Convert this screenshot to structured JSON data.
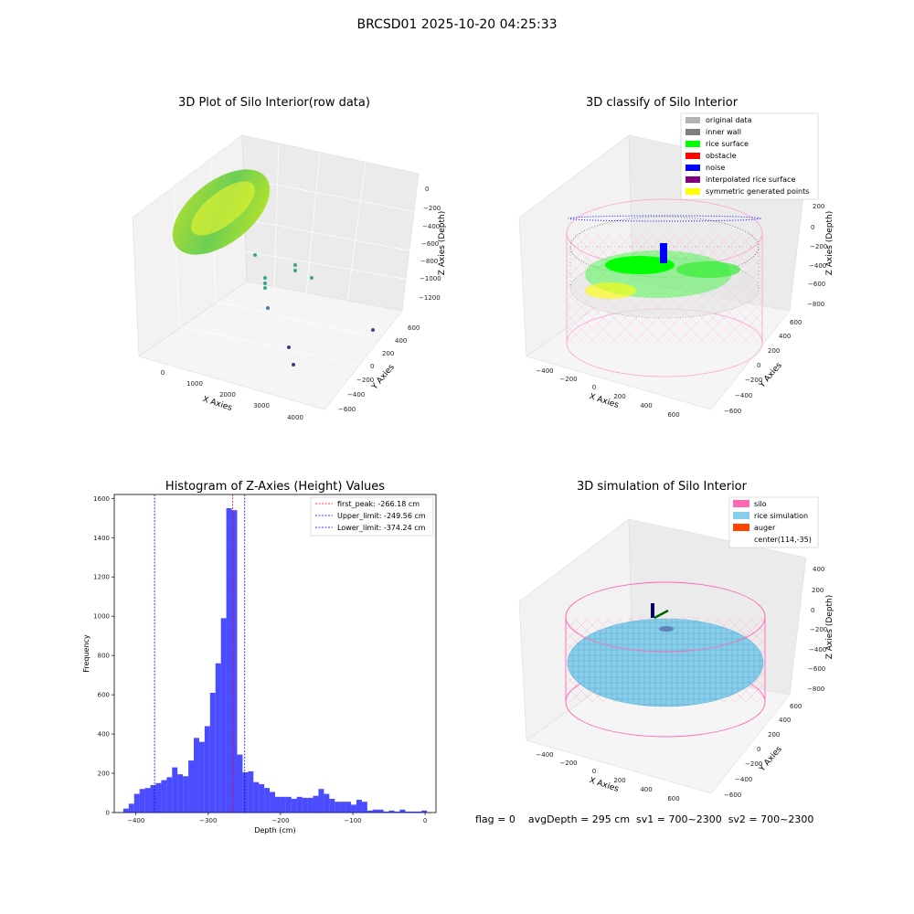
{
  "figure": {
    "suptitle": "BRCSD01 2025-10-20 04:25:33",
    "footer": "flag = 0    avgDepth = 295 cm  sv1 = 700~2300  sv2 = 700~2300"
  },
  "panel1": {
    "title": "3D Plot of Silo Interior(row data)",
    "xlabel": "X Axies",
    "ylabel": "Y Axies",
    "zlabel": "Z Axies (Depth)",
    "xticks": [
      "0",
      "1000",
      "2000",
      "3000",
      "4000"
    ],
    "yticks": [
      "−600",
      "−400",
      "−200",
      "0",
      "200",
      "400",
      "600"
    ],
    "zticks": [
      "−1200",
      "−1000",
      "−800",
      "−600",
      "−400",
      "−200",
      "0"
    ]
  },
  "panel2": {
    "title": "3D classify of Silo Interior",
    "xlabel": "X Axies",
    "ylabel": "Y Axies",
    "zlabel": "Z Axies (Depth)",
    "xticks": [
      "−400",
      "−200",
      "0",
      "200",
      "400",
      "600"
    ],
    "yticks": [
      "−600",
      "−400",
      "−200",
      "0",
      "200",
      "400",
      "600"
    ],
    "zticks": [
      "−800",
      "−600",
      "−400",
      "−200",
      "0",
      "200"
    ],
    "legend": [
      {
        "label": "original data",
        "color": "#b3b3b3"
      },
      {
        "label": "inner wall",
        "color": "#808080"
      },
      {
        "label": "rice surface",
        "color": "#00ff00"
      },
      {
        "label": "obstacle",
        "color": "#ff0000"
      },
      {
        "label": "noise",
        "color": "#0000ff"
      },
      {
        "label": "interpolated rice surface",
        "color": "#800080"
      },
      {
        "label": "symmetric generated points",
        "color": "#ffff00"
      }
    ]
  },
  "panel4": {
    "title": "3D simulation of Silo Interior",
    "xlabel": "X Axies",
    "ylabel": "Y Axies",
    "zlabel": "Z Axies (Depth)",
    "xticks": [
      "−400",
      "−200",
      "0",
      "200",
      "400",
      "600"
    ],
    "yticks": [
      "−600",
      "−400",
      "−200",
      "0",
      "200",
      "400",
      "600"
    ],
    "zticks": [
      "−800",
      "−600",
      "−400",
      "−200",
      "0",
      "200",
      "400"
    ],
    "legend": [
      {
        "label": "silo",
        "color": "#ff69b4"
      },
      {
        "label": "rice simulation",
        "color": "#87ceeb"
      },
      {
        "label": "auger",
        "color": "#ff4500"
      },
      {
        "label": "center(114,-35)",
        "color": "none"
      }
    ]
  },
  "chart_data": {
    "type": "bar",
    "title": "Histogram of Z-Axies (Height) Values",
    "xlabel": "Depth (cm)",
    "ylabel": "Frequency",
    "xlim": [
      -430,
      15
    ],
    "ylim": [
      0,
      1620
    ],
    "bar_color": "#0000ff",
    "bar_width": 7.5,
    "xticks": [
      -400,
      -300,
      -200,
      -100,
      0
    ],
    "xtick_labels": [
      "−400",
      "−300",
      "−200",
      "−100",
      "0"
    ],
    "yticks": [
      0,
      200,
      400,
      600,
      800,
      1000,
      1200,
      1400,
      1600
    ],
    "bins_left": [
      -417.5,
      -410,
      -402.5,
      -395,
      -387.5,
      -380,
      -372.5,
      -365,
      -357.5,
      -350,
      -342.5,
      -335,
      -327.5,
      -320,
      -312.5,
      -305,
      -297.5,
      -290,
      -282.5,
      -275,
      -267.5,
      -260,
      -252.5,
      -245,
      -237.5,
      -230,
      -222.5,
      -215,
      -207.5,
      -200,
      -192.5,
      -185,
      -177.5,
      -170,
      -162.5,
      -155,
      -147.5,
      -140,
      -132.5,
      -125,
      -117.5,
      -110,
      -102.5,
      -95,
      -87.5,
      -80,
      -72.5,
      -65,
      -57.5,
      -50,
      -42.5,
      -35,
      -27.5,
      -20,
      -12.5,
      -5
    ],
    "values": [
      20,
      45,
      95,
      120,
      125,
      140,
      150,
      165,
      180,
      230,
      195,
      185,
      265,
      380,
      360,
      440,
      610,
      760,
      990,
      1550,
      1540,
      295,
      205,
      210,
      155,
      145,
      125,
      105,
      80,
      80,
      80,
      70,
      80,
      75,
      75,
      85,
      120,
      95,
      70,
      55,
      55,
      55,
      40,
      65,
      55,
      10,
      15,
      15,
      5,
      10,
      5,
      15,
      5,
      5,
      5,
      10
    ],
    "series": [
      {
        "name": "first_peak: -266.18 cm",
        "x": -266.18,
        "color": "#ff0000"
      },
      {
        "name": "Upper_limit: -249.56 cm",
        "x": -249.56,
        "color": "#0000ff"
      },
      {
        "name": "Lower_limit: -374.24 cm",
        "x": -374.24,
        "color": "#0000ff"
      }
    ]
  }
}
